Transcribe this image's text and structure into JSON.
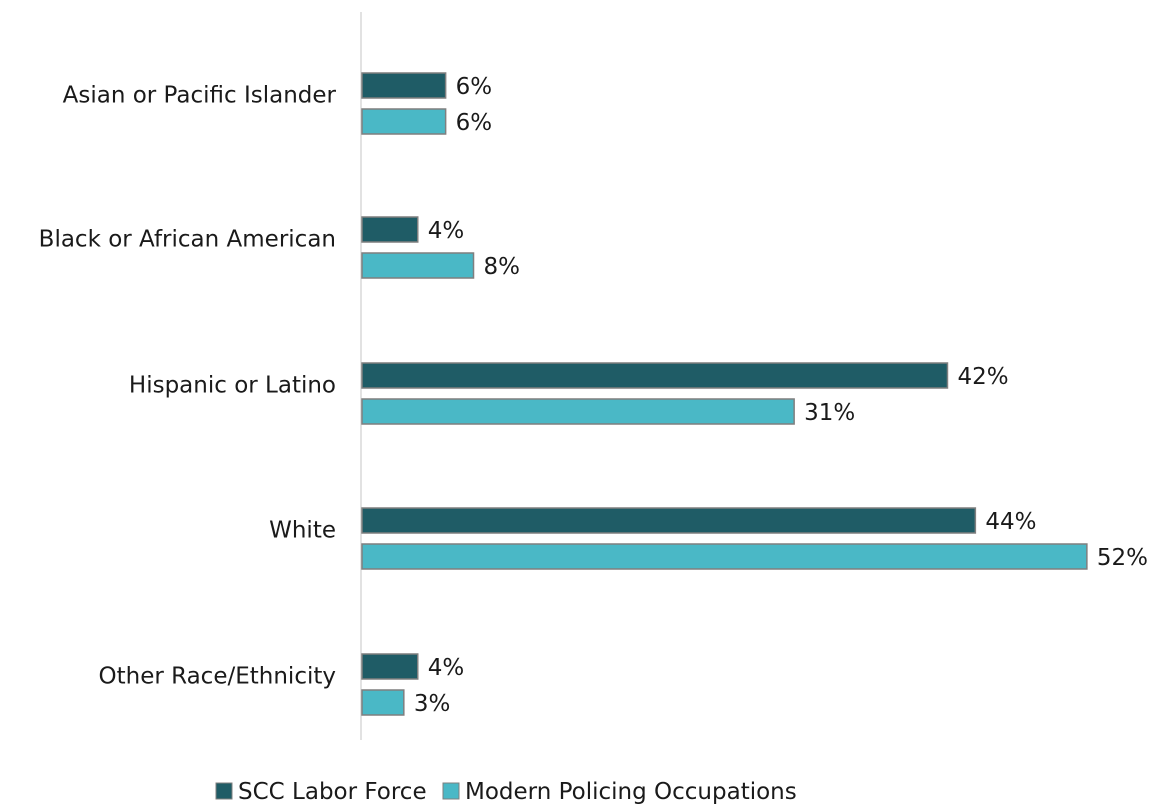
{
  "chart_data": {
    "type": "bar",
    "orientation": "horizontal",
    "categories": [
      "Asian or Pacific Islander",
      "Black or African American",
      "Hispanic or Latino",
      "White",
      "Other Race/Ethnicity"
    ],
    "series": [
      {
        "name": "SCC Labor Force",
        "color": "#1f5c66",
        "values": [
          6,
          4,
          42,
          44,
          4
        ],
        "labels": [
          "6%",
          "4%",
          "42%",
          "44%",
          "4%"
        ]
      },
      {
        "name": "Modern Policing Occupations",
        "color": "#4ab8c6",
        "values": [
          6,
          8,
          31,
          52,
          3
        ],
        "labels": [
          "6%",
          "8%",
          "31%",
          "52%",
          "3%"
        ]
      }
    ],
    "xlim": [
      0,
      52
    ],
    "grid": false,
    "legend_position": "bottom"
  }
}
